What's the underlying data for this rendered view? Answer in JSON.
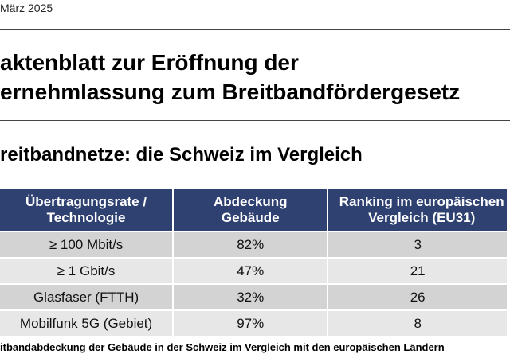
{
  "header": {
    "date": "März 2025"
  },
  "title": {
    "line1": "aktenblatt zur Eröffnung der",
    "line2": "ernehmlassung zum Breitbandfördergesetz"
  },
  "section": {
    "subtitle": "reitbandnetze: die Schweiz im Vergleich"
  },
  "table": {
    "headers": [
      "Übertragungsrate / Technologie",
      "Abdeckung Gebäude",
      "Ranking im europäischen Vergleich (EU31)"
    ],
    "rows": [
      [
        "≥ 100 Mbit/s",
        "82%",
        "3"
      ],
      [
        "≥ 1 Gbit/s",
        "47%",
        "21"
      ],
      [
        "Glasfaser (FTTH)",
        "32%",
        "26"
      ],
      [
        "Mobilfunk 5G (Gebiet)",
        "97%",
        "8"
      ]
    ]
  },
  "caption": "itbandabdeckung der Gebäude in der Schweiz im Vergleich mit den europäischen Ländern",
  "colors": {
    "header_bg": "#2f4170",
    "row_dark": "#d3d3d3",
    "row_light": "#e7e7e7"
  }
}
